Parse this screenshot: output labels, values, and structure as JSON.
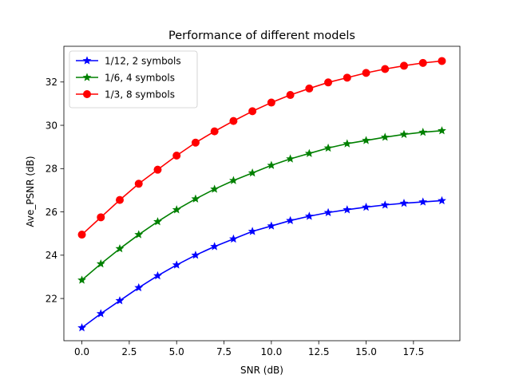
{
  "chart_data": {
    "type": "line",
    "title": "Performance of different models",
    "xlabel": "SNR (dB)",
    "ylabel": "Ave_PSNR (dB)",
    "xlim": [
      -0.95,
      19.95
    ],
    "ylim": [
      20.05,
      33.65
    ],
    "xticks": [
      0,
      2.5,
      5,
      7.5,
      10,
      12.5,
      15,
      17.5
    ],
    "xtick_labels": [
      "0.0",
      "2.5",
      "5.0",
      "7.5",
      "10.0",
      "12.5",
      "15.0",
      "17.5"
    ],
    "yticks": [
      22,
      24,
      26,
      28,
      30,
      32
    ],
    "ytick_labels": [
      "22",
      "24",
      "26",
      "28",
      "30",
      "32"
    ],
    "grid": false,
    "legend_position": "top-left",
    "x": [
      0,
      1,
      2,
      3,
      4,
      5,
      6,
      7,
      8,
      9,
      10,
      11,
      12,
      13,
      14,
      15,
      16,
      17,
      18,
      19
    ],
    "series": [
      {
        "name": "1/12, 2 symbols",
        "color": "#0000ff",
        "marker": "star",
        "values": [
          20.65,
          21.3,
          21.9,
          22.5,
          23.05,
          23.55,
          24.0,
          24.4,
          24.75,
          25.1,
          25.35,
          25.6,
          25.8,
          25.97,
          26.1,
          26.22,
          26.32,
          26.4,
          26.46,
          26.52
        ]
      },
      {
        "name": "1/6, 4 symbols",
        "color": "#008000",
        "marker": "star",
        "values": [
          22.85,
          23.6,
          24.3,
          24.95,
          25.55,
          26.1,
          26.6,
          27.05,
          27.45,
          27.8,
          28.15,
          28.45,
          28.7,
          28.95,
          29.15,
          29.3,
          29.45,
          29.58,
          29.68,
          29.75
        ]
      },
      {
        "name": "1/3, 8 symbols",
        "color": "#ff0000",
        "marker": "circle",
        "values": [
          24.95,
          25.75,
          26.55,
          27.3,
          27.95,
          28.6,
          29.2,
          29.72,
          30.2,
          30.65,
          31.05,
          31.4,
          31.7,
          31.98,
          32.2,
          32.42,
          32.6,
          32.75,
          32.88,
          32.97
        ]
      }
    ]
  }
}
